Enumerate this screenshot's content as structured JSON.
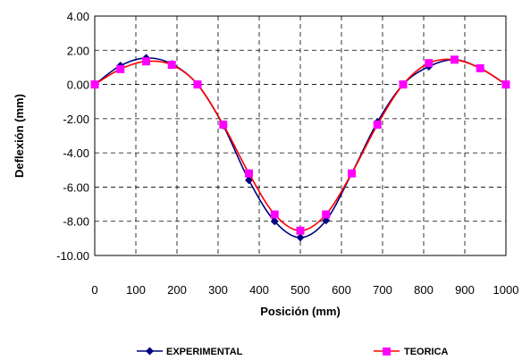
{
  "chart_data": {
    "type": "line",
    "title": "",
    "xlabel": "Posición (mm)",
    "ylabel": "Deflexión (mm)",
    "xlim": [
      0,
      1000
    ],
    "ylim": [
      -10,
      4
    ],
    "x_ticks": [
      "0",
      "100",
      "200",
      "300",
      "400",
      "500",
      "600",
      "700",
      "800",
      "900",
      "1000"
    ],
    "y_ticks": [
      "4.00",
      "2.00",
      "0.00",
      "-2.00",
      "-4.00",
      "-6.00",
      "-8.00",
      "-10.00"
    ],
    "grid": true,
    "legend_position": "bottom",
    "series": [
      {
        "name": "EXPERIMENTAL",
        "color": "#000080",
        "marker": "diamond",
        "x": [
          0,
          62.5,
          125,
          187.5,
          250,
          312.5,
          375,
          437.5,
          500,
          562.5,
          625,
          687.5,
          750,
          812.5,
          875,
          937.5,
          1000
        ],
        "y": [
          0,
          1.1,
          1.55,
          1.2,
          0,
          -2.4,
          -5.6,
          -8.0,
          -8.95,
          -7.95,
          -5.2,
          -2.2,
          0,
          1.05,
          1.45,
          0.95,
          0
        ]
      },
      {
        "name": "TEORICA",
        "color": "#ff00ff",
        "line_color": "#ff0000",
        "marker": "square",
        "x": [
          0,
          62.5,
          125,
          187.5,
          250,
          312.5,
          375,
          437.5,
          500,
          562.5,
          625,
          687.5,
          750,
          812.5,
          875,
          937.5,
          1000
        ],
        "y": [
          0,
          0.9,
          1.35,
          1.15,
          0,
          -2.35,
          -5.2,
          -7.6,
          -8.55,
          -7.6,
          -5.2,
          -2.35,
          0,
          1.25,
          1.45,
          0.95,
          0
        ]
      }
    ]
  }
}
